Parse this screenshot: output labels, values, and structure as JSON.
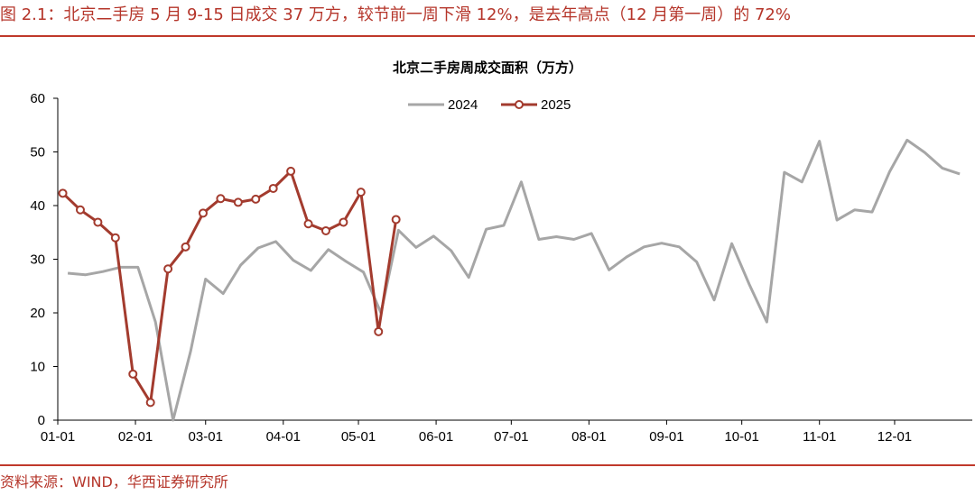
{
  "figure": {
    "title": "图 2.1：北京二手房 5 月 9-15 日成交 37 万方，较节前一周下滑 12%，是去年高点（12 月第一周）的 72%",
    "source": "资料来源：WIND，华西证券研究所"
  },
  "colors": {
    "accent": "#c0392b",
    "series_2024": "#a6a6a6",
    "series_2025": "#a33b2e"
  },
  "chart_data": {
    "type": "line",
    "title": "北京二手房周成交面积（万方）",
    "xlabel": "",
    "ylabel": "",
    "ylim": [
      0,
      60
    ],
    "yticks": [
      0,
      10,
      20,
      30,
      40,
      50,
      60
    ],
    "xticks": [
      "01-01",
      "02-01",
      "03-01",
      "04-01",
      "05-01",
      "06-01",
      "07-01",
      "08-01",
      "09-01",
      "10-01",
      "11-01",
      "12-01"
    ],
    "grid": false,
    "legend": "top-center",
    "series": [
      {
        "name": "2024",
        "marker": "none",
        "x": [
          "01-05",
          "01-12",
          "01-19",
          "01-26",
          "02-02",
          "02-09",
          "02-16",
          "02-23",
          "03-01",
          "03-08",
          "03-15",
          "03-22",
          "03-29",
          "04-05",
          "04-12",
          "04-19",
          "04-26",
          "05-03",
          "05-10",
          "05-17",
          "05-24",
          "05-31",
          "06-07",
          "06-14",
          "06-21",
          "06-28",
          "07-05",
          "07-12",
          "07-19",
          "07-26",
          "08-02",
          "08-09",
          "08-16",
          "08-23",
          "08-30",
          "09-06",
          "09-13",
          "09-20",
          "09-27",
          "10-04",
          "10-11",
          "10-18",
          "10-25",
          "11-01",
          "11-08",
          "11-15",
          "11-22",
          "11-29",
          "12-06",
          "12-13",
          "12-20",
          "12-27"
        ],
        "values": [
          27.4,
          27.1,
          27.7,
          28.5,
          28.5,
          18.3,
          0.0,
          12.8,
          26.3,
          23.6,
          28.9,
          32.1,
          33.3,
          29.8,
          27.9,
          31.8,
          29.6,
          27.6,
          20.0,
          35.4,
          32.2,
          34.3,
          31.6,
          26.6,
          35.6,
          36.3,
          44.4,
          33.7,
          34.2,
          33.7,
          34.8,
          28.0,
          30.4,
          32.3,
          33.0,
          32.3,
          29.5,
          22.4,
          32.9,
          25.3,
          18.3,
          46.2,
          44.4,
          52.0,
          37.3,
          39.2,
          38.8,
          46.3,
          52.2,
          49.9,
          47.0,
          45.9
        ]
      },
      {
        "name": "2025",
        "marker": "circle",
        "x": [
          "01-03",
          "01-10",
          "01-17",
          "01-24",
          "01-31",
          "02-07",
          "02-14",
          "02-21",
          "02-28",
          "03-07",
          "03-14",
          "03-21",
          "03-28",
          "04-04",
          "04-11",
          "04-18",
          "04-25",
          "05-02",
          "05-09",
          "05-16"
        ],
        "values": [
          42.3,
          39.2,
          36.9,
          34.0,
          8.6,
          3.3,
          28.2,
          32.3,
          38.6,
          41.3,
          40.6,
          41.2,
          43.2,
          46.4,
          36.6,
          35.3,
          36.9,
          42.5,
          16.5,
          37.4
        ]
      }
    ]
  }
}
